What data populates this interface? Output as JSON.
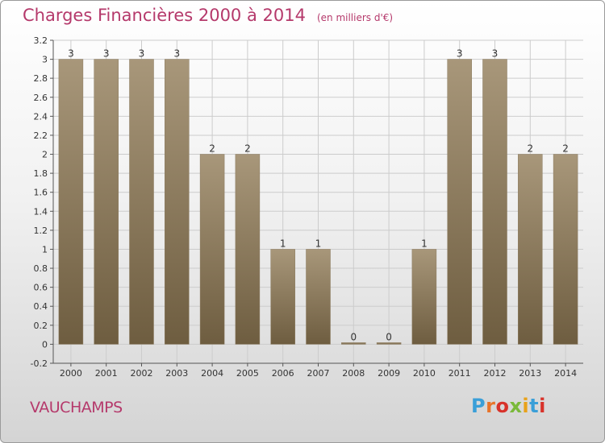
{
  "header": {
    "title": "Charges Financières 2000 à 2014",
    "subtitle": "(en milliers d'€)"
  },
  "footer": {
    "commune": "VAUCHAMPS",
    "brand": "Proxiti",
    "brand_colors": [
      "#3a9fd8",
      "#e8742a",
      "#d8322a",
      "#7ab93a",
      "#e8a21a",
      "#3a9fd8",
      "#d8322a"
    ]
  },
  "colors": {
    "title": "#b5396b",
    "bar_top": "#a8977a",
    "bar_bottom": "#6e5d40",
    "grid": "#cccccc"
  },
  "chart_data": {
    "type": "bar",
    "categories": [
      "2000",
      "2001",
      "2002",
      "2003",
      "2004",
      "2005",
      "2006",
      "2007",
      "2008",
      "2009",
      "2010",
      "2011",
      "2012",
      "2013",
      "2014"
    ],
    "values": [
      3,
      3,
      3,
      3,
      2,
      2,
      1,
      1,
      0,
      0,
      1,
      3,
      3,
      2,
      2
    ],
    "value_labels": [
      "3",
      "3",
      "3",
      "3",
      "2",
      "2",
      "1",
      "1",
      "0",
      "0",
      "1",
      "3",
      "3",
      "2",
      "2"
    ],
    "title": "Charges Financières 2000 à 2014",
    "subtitle": "(en milliers d'€)",
    "ylim": [
      -0.2,
      3.2
    ],
    "yticks": [
      "-0.2",
      "0",
      "0.2",
      "0.4",
      "0.6",
      "0.8",
      "1",
      "1.2",
      "1.4",
      "1.6",
      "1.8",
      "2",
      "2.2",
      "2.4",
      "2.6",
      "2.8",
      "3",
      "3.2"
    ],
    "grid": true
  }
}
